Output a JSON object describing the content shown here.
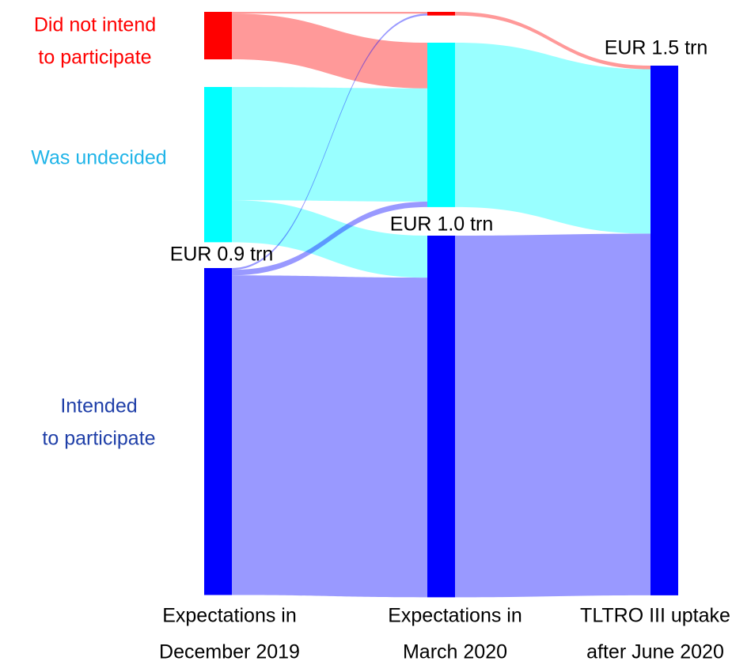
{
  "chart_data": {
    "type": "sankey",
    "columns": [
      {
        "label": [
          "Expectations in",
          "December 2019"
        ]
      },
      {
        "label": [
          "Expectations in",
          "March 2020"
        ]
      },
      {
        "label": [
          "TLTRO III uptake",
          "after June 2020"
        ]
      }
    ],
    "nodes": [
      {
        "name": [
          "Did not intend",
          "to participate"
        ],
        "column": 0,
        "color": "#ff0000",
        "label_color": "#ff0000"
      },
      {
        "name": [
          "Was undecided"
        ],
        "column": 0,
        "color": "#00ffff",
        "label_color": "#1fb4e8"
      },
      {
        "name": [
          "Intended",
          "to participate"
        ],
        "column": 0,
        "color": "#0000ff",
        "label_color": "#1f3fa8"
      },
      {
        "column": 1,
        "color": "#ff0000"
      },
      {
        "column": 1,
        "color": "#00ffff"
      },
      {
        "column": 1,
        "color": "#0000ff"
      },
      {
        "column": 2,
        "color": "#0000ff"
      }
    ],
    "links": [
      {
        "source": 0,
        "target": 3,
        "value": 0.005
      },
      {
        "source": 0,
        "target": 4,
        "value": 0.125
      },
      {
        "source": 1,
        "target": 4,
        "value": 0.31
      },
      {
        "source": 1,
        "target": 5,
        "value": 0.115
      },
      {
        "source": 2,
        "target": 3,
        "value": 0.005
      },
      {
        "source": 2,
        "target": 4,
        "value": 0.015
      },
      {
        "source": 2,
        "target": 5,
        "value": 0.875
      },
      {
        "source": 3,
        "target": 6,
        "value": 0.01
      },
      {
        "source": 4,
        "target": 6,
        "value": 0.45
      },
      {
        "source": 5,
        "target": 6,
        "value": 0.99
      }
    ],
    "annotations": [
      "EUR 0.9 trn",
      "EUR 1.0 trn",
      "EUR 1.5 trn"
    ]
  }
}
